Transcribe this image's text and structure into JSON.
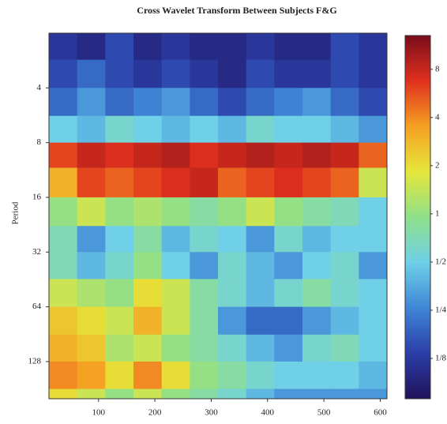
{
  "chart_data": {
    "type": "heatmap",
    "title": "Cross Wavelet Transform Between Subjects F&G",
    "y_label": "Period",
    "x_edges": [
      12,
      62,
      112,
      162,
      212,
      262,
      312,
      362,
      412,
      462,
      512,
      562,
      612
    ],
    "period_edges": [
      2,
      2.8,
      4,
      5.7,
      8,
      11,
      16,
      23,
      32,
      45,
      64,
      91,
      128,
      181,
      205
    ],
    "values": [
      [
        0.12,
        0.1,
        0.15,
        0.1,
        0.12,
        0.1,
        0.1,
        0.12,
        0.1,
        0.1,
        0.15,
        0.12
      ],
      [
        0.15,
        0.2,
        0.15,
        0.12,
        0.15,
        0.12,
        0.1,
        0.15,
        0.12,
        0.12,
        0.15,
        0.12
      ],
      [
        0.2,
        0.3,
        0.2,
        0.25,
        0.3,
        0.2,
        0.15,
        0.2,
        0.25,
        0.3,
        0.2,
        0.15
      ],
      [
        0.5,
        0.4,
        0.6,
        0.5,
        0.4,
        0.5,
        0.4,
        0.6,
        0.5,
        0.5,
        0.4,
        0.3
      ],
      [
        6,
        8,
        7,
        8,
        9,
        7,
        8,
        9,
        8,
        9,
        8,
        5
      ],
      [
        3,
        6,
        5,
        6,
        7,
        8,
        5,
        6,
        7,
        6,
        5,
        1.5
      ],
      [
        1,
        1.5,
        1,
        1.2,
        1,
        0.8,
        1,
        1.5,
        1,
        0.8,
        0.7,
        0.5
      ],
      [
        0.7,
        0.3,
        0.5,
        0.8,
        0.4,
        0.6,
        0.5,
        0.3,
        0.6,
        0.4,
        0.5,
        0.5
      ],
      [
        0.7,
        0.4,
        0.6,
        1,
        0.5,
        0.3,
        0.6,
        0.4,
        0.3,
        0.5,
        0.6,
        0.3
      ],
      [
        1.5,
        1.2,
        1,
        2,
        1.5,
        0.8,
        0.6,
        0.4,
        0.6,
        0.8,
        0.6,
        0.5
      ],
      [
        2.5,
        2,
        1.5,
        3,
        1.5,
        0.8,
        0.3,
        0.2,
        0.2,
        0.3,
        0.4,
        0.5
      ],
      [
        3,
        2.5,
        1.2,
        1.5,
        1,
        0.8,
        0.6,
        0.4,
        0.3,
        0.6,
        0.7,
        0.5
      ],
      [
        4,
        3.5,
        2,
        4,
        2,
        1,
        0.8,
        0.6,
        0.5,
        0.5,
        0.5,
        0.4
      ],
      [
        2,
        1.5,
        1,
        1.5,
        1,
        0.8,
        0.6,
        0.4,
        0.3,
        0.3,
        0.3,
        0.3
      ]
    ],
    "xlim": [
      12,
      612
    ],
    "xticks": [
      100,
      200,
      300,
      400,
      500,
      600
    ],
    "ylim": [
      2,
      205
    ],
    "yticks": [
      4,
      8,
      16,
      32,
      64,
      128
    ],
    "y_log2": true,
    "y_inverted": true,
    "clim": [
      0.07,
      13
    ],
    "c_log2": true,
    "cticks": [
      8,
      4,
      2,
      1,
      {
        "value": 0.5,
        "label": "1/2"
      },
      {
        "value": 0.25,
        "label": "1/4"
      },
      {
        "value": 0.125,
        "label": "1/8"
      }
    ],
    "colormap": [
      "#20125a",
      "#2b3ea8",
      "#3f86d6",
      "#6fd0e8",
      "#8fe08a",
      "#e6e63a",
      "#f5a023",
      "#e0301e",
      "#7a0d1a"
    ]
  }
}
